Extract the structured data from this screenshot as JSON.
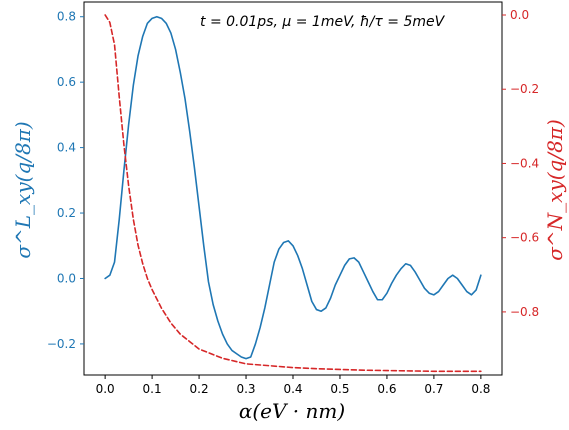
{
  "chart_data": {
    "type": "line",
    "annotation": "t = 0.01ps, μ = 1meV,  ħ/τ = 5meV",
    "xlabel": "α(eV · nm)",
    "ylabel_left": "σ^L_xy(q/8π)",
    "ylabel_right": "σ^N_xy(q/8π)",
    "xlim": [
      -0.045,
      0.845
    ],
    "ylim_left": [
      -0.295,
      0.845
    ],
    "ylim_right": [
      -0.97,
      0.035
    ],
    "x_ticks": [
      0.0,
      0.1,
      0.2,
      0.3,
      0.4,
      0.5,
      0.6,
      0.7,
      0.8
    ],
    "x_tick_labels": [
      "0.0",
      "0.1",
      "0.2",
      "0.3",
      "0.4",
      "0.5",
      "0.6",
      "0.7",
      "0.8"
    ],
    "y_left_ticks": [
      -0.2,
      0.0,
      0.2,
      0.4,
      0.6,
      0.8
    ],
    "y_left_tick_labels": [
      "−0.2",
      "0.0",
      "0.2",
      "0.4",
      "0.6",
      "0.8"
    ],
    "y_right_ticks": [
      0.0,
      -0.2,
      -0.4,
      -0.6,
      -0.8
    ],
    "y_right_tick_labels": [
      "0.0",
      "−0.2",
      "−0.4",
      "−0.6",
      "−0.8"
    ],
    "grid": false,
    "series": [
      {
        "axis": "left",
        "color": "#1f77b4",
        "style": "solid",
        "x": [
          0.0,
          0.01,
          0.02,
          0.03,
          0.04,
          0.05,
          0.06,
          0.07,
          0.08,
          0.09,
          0.1,
          0.11,
          0.12,
          0.13,
          0.14,
          0.15,
          0.16,
          0.17,
          0.18,
          0.19,
          0.2,
          0.21,
          0.22,
          0.23,
          0.24,
          0.25,
          0.26,
          0.27,
          0.28,
          0.29,
          0.3,
          0.31,
          0.32,
          0.33,
          0.34,
          0.35,
          0.36,
          0.37,
          0.38,
          0.39,
          0.4,
          0.41,
          0.42,
          0.43,
          0.44,
          0.45,
          0.46,
          0.47,
          0.48,
          0.49,
          0.5,
          0.51,
          0.52,
          0.53,
          0.54,
          0.55,
          0.56,
          0.57,
          0.58,
          0.59,
          0.6,
          0.61,
          0.62,
          0.63,
          0.64,
          0.65,
          0.66,
          0.67,
          0.68,
          0.69,
          0.7,
          0.71,
          0.72,
          0.73,
          0.74,
          0.75,
          0.76,
          0.77,
          0.78,
          0.79,
          0.8
        ],
        "y": [
          0.0,
          0.01,
          0.05,
          0.18,
          0.33,
          0.47,
          0.59,
          0.68,
          0.74,
          0.78,
          0.795,
          0.8,
          0.795,
          0.78,
          0.75,
          0.7,
          0.63,
          0.55,
          0.45,
          0.34,
          0.22,
          0.1,
          -0.01,
          -0.08,
          -0.13,
          -0.17,
          -0.2,
          -0.22,
          -0.23,
          -0.24,
          -0.245,
          -0.24,
          -0.2,
          -0.15,
          -0.09,
          -0.02,
          0.05,
          0.09,
          0.11,
          0.115,
          0.1,
          0.07,
          0.03,
          -0.02,
          -0.07,
          -0.095,
          -0.1,
          -0.09,
          -0.06,
          -0.02,
          0.01,
          0.04,
          0.06,
          0.063,
          0.05,
          0.02,
          -0.01,
          -0.04,
          -0.065,
          -0.065,
          -0.045,
          -0.015,
          0.01,
          0.03,
          0.045,
          0.04,
          0.02,
          -0.005,
          -0.03,
          -0.045,
          -0.05,
          -0.04,
          -0.02,
          0.0,
          0.01,
          0.0,
          -0.02,
          -0.04,
          -0.05,
          -0.035,
          0.01
        ]
      },
      {
        "axis": "right",
        "color": "#d62728",
        "style": "dashed",
        "x": [
          0.0,
          0.01,
          0.02,
          0.03,
          0.04,
          0.05,
          0.06,
          0.07,
          0.08,
          0.09,
          0.1,
          0.12,
          0.14,
          0.16,
          0.18,
          0.2,
          0.22,
          0.25,
          0.3,
          0.35,
          0.4,
          0.45,
          0.5,
          0.55,
          0.6,
          0.65,
          0.7,
          0.75,
          0.8
        ],
        "y": [
          0.0,
          -0.02,
          -0.08,
          -0.22,
          -0.35,
          -0.46,
          -0.55,
          -0.62,
          -0.67,
          -0.71,
          -0.74,
          -0.79,
          -0.83,
          -0.86,
          -0.88,
          -0.9,
          -0.91,
          -0.925,
          -0.94,
          -0.945,
          -0.95,
          -0.953,
          -0.955,
          -0.957,
          -0.958,
          -0.959,
          -0.96,
          -0.96,
          -0.96
        ]
      }
    ]
  }
}
